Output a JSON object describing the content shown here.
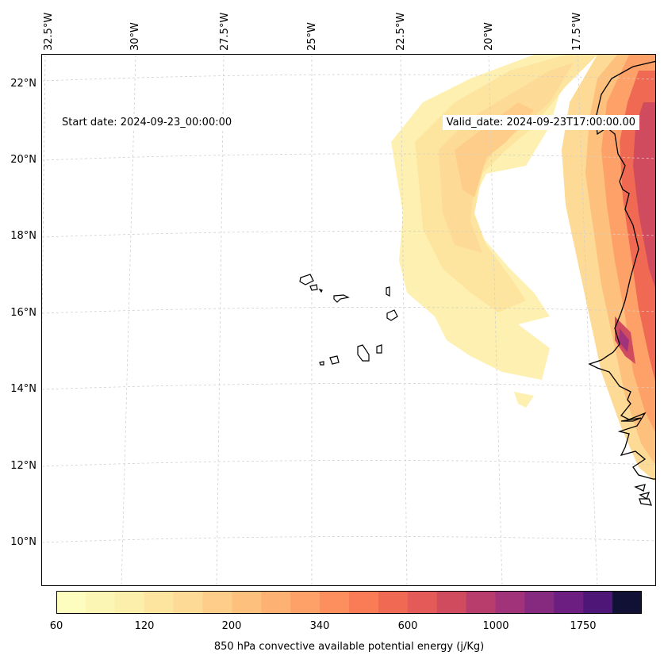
{
  "map": {
    "start_date": "Start date: 2024-09-23_00:00:00",
    "valid_date": "Valid_date: 2024-09-23T17:00:00.00",
    "lon_labels": [
      "32.5°W",
      "30°W",
      "27.5°W",
      "25°W",
      "22.5°W",
      "20°W",
      "17.5°W"
    ],
    "lat_labels": [
      "22°N",
      "20°N",
      "18°N",
      "16°N",
      "14°N",
      "12°N",
      "10°N"
    ],
    "extent": {
      "lon_min": -32.6,
      "lon_max": -15.2,
      "lat_min": 8.9,
      "lat_max": 22.8
    }
  },
  "colorbar": {
    "label": "850 hPa convective available potential energy (j/Kg)",
    "tick_labels": [
      "60",
      "120",
      "200",
      "340",
      "600",
      "1000",
      "1750"
    ],
    "colors": [
      "#fcfdbf",
      "#fcf6b5",
      "#fcefab",
      "#fde5a0",
      "#fdda95",
      "#fdcd89",
      "#fdc07d",
      "#fdb172",
      "#fda168",
      "#fd8f5e",
      "#f97c57",
      "#f06a53",
      "#e35a58",
      "#d14b5f",
      "#b83c6c",
      "#a0337a",
      "#862a7f",
      "#6c1f80",
      "#4e1677",
      "#111136"
    ],
    "colors_note": "map fill levels: low to high"
  }
}
